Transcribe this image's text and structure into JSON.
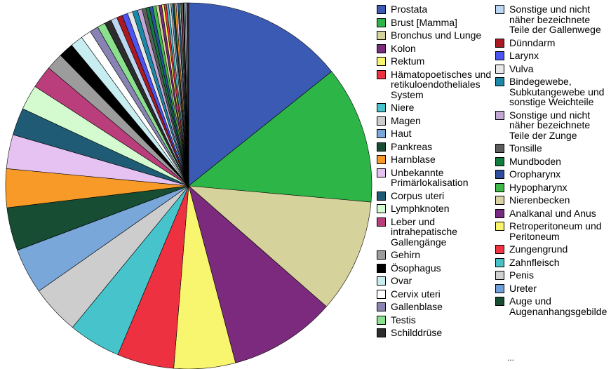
{
  "chart_data": {
    "type": "pie",
    "title": "",
    "slices": [
      {
        "label": "Prostata",
        "value": 14.2,
        "color": "#3b5ab4"
      },
      {
        "label": "Brust [Mamma]",
        "value": 12.1,
        "color": "#2db548"
      },
      {
        "label": "Bronchus und Lunge",
        "value": 10.0,
        "color": "#d6d29c"
      },
      {
        "label": "Kolon",
        "value": 9.4,
        "color": "#7b2a7e"
      },
      {
        "label": "Rektum",
        "value": 5.4,
        "color": "#f8f56e"
      },
      {
        "label": "Hämatopoetisches und retikuloendotheliales System",
        "value": 5.0,
        "color": "#ee3140"
      },
      {
        "label": "Niere",
        "value": 4.6,
        "color": "#46c3cb"
      },
      {
        "label": "Magen",
        "value": 4.3,
        "color": "#cdcdcd"
      },
      {
        "label": "Haut",
        "value": 4.0,
        "color": "#7aa7d9"
      },
      {
        "label": "Pankreas",
        "value": 3.8,
        "color": "#164d33"
      },
      {
        "label": "Harnblase",
        "value": 3.4,
        "color": "#f79a27"
      },
      {
        "label": "Unbekannte Primärlokalisation",
        "value": 3.0,
        "color": "#e5c2f1"
      },
      {
        "label": "Corpus uteri",
        "value": 2.4,
        "color": "#1f5b74"
      },
      {
        "label": "Lymphknoten",
        "value": 2.2,
        "color": "#d4fbd0"
      },
      {
        "label": "Leber und intrahepatische Gallengänge",
        "value": 2.0,
        "color": "#bb3e7c"
      },
      {
        "label": "Gehirn",
        "value": 1.5,
        "color": "#9c9c9c"
      },
      {
        "label": "Ösophagus",
        "value": 1.3,
        "color": "#000000"
      },
      {
        "label": "Ovar",
        "value": 1.1,
        "color": "#c8edf1"
      },
      {
        "label": "Cervix uteri",
        "value": 0.9,
        "color": "#ffffff"
      },
      {
        "label": "Gallenblase",
        "value": 0.75,
        "color": "#8983b4"
      },
      {
        "label": "Testis",
        "value": 0.7,
        "color": "#8be08e"
      },
      {
        "label": "Schilddrüse",
        "value": 0.6,
        "color": "#2d2d2d"
      },
      {
        "label": "Sonstige und nicht näher bezeichnete Teile der Gallenwege",
        "value": 0.55,
        "color": "#bcd7f3"
      },
      {
        "label": "Dünndarm",
        "value": 0.5,
        "color": "#aa1b21"
      },
      {
        "label": "Larynx",
        "value": 0.5,
        "color": "#4c55f2"
      },
      {
        "label": "Vulva",
        "value": 0.45,
        "color": "#e8e8e8"
      },
      {
        "label": "Bindegewebe, Subkutangewebe und sonstige Weichteile",
        "value": 0.45,
        "color": "#1c88a8"
      },
      {
        "label": "Sonstige und nicht näher bezeichnete Teile der Zunge",
        "value": 0.4,
        "color": "#c2a6d4"
      },
      {
        "label": "Tonsille",
        "value": 0.35,
        "color": "#5c5c5c"
      },
      {
        "label": "Mundboden",
        "value": 0.3,
        "color": "#127c3e"
      },
      {
        "label": "Oropharynx",
        "value": 0.3,
        "color": "#2f4f9e"
      },
      {
        "label": "Hypopharynx",
        "value": 0.3,
        "color": "#3fba4a"
      },
      {
        "label": "Nierenbecken",
        "value": 0.25,
        "color": "#d9d3a3"
      },
      {
        "label": "Analkanal und Anus",
        "value": 0.25,
        "color": "#762a82"
      },
      {
        "label": "Retroperitoneum und Peritoneum",
        "value": 0.2,
        "color": "#f9f56a"
      },
      {
        "label": "Zungengrund",
        "value": 0.2,
        "color": "#ef3442"
      },
      {
        "label": "Zahnfleisch",
        "value": 0.2,
        "color": "#47c1c6"
      },
      {
        "label": "Penis",
        "value": 0.2,
        "color": "#d0d0d0"
      },
      {
        "label": "Ureter",
        "value": 0.15,
        "color": "#6f9fd8"
      },
      {
        "label": "Auge und Augenanhangsgebilde",
        "value": 0.15,
        "color": "#174d30"
      },
      {
        "label": "",
        "value": 0.15,
        "color": "#f79a27"
      },
      {
        "label": "",
        "value": 0.15,
        "color": "#e3c3f0"
      },
      {
        "label": "",
        "value": 0.15,
        "color": "#1f5b74"
      },
      {
        "label": "",
        "value": 0.1,
        "color": "#ccf5cc"
      },
      {
        "label": "",
        "value": 0.1,
        "color": "#b63a78"
      },
      {
        "label": "",
        "value": 0.1,
        "color": "#9c9c9c"
      },
      {
        "label": "",
        "value": 0.1,
        "color": "#000000"
      },
      {
        "label": "",
        "value": 0.1,
        "color": "#c8edf1"
      },
      {
        "label": "",
        "value": 0.1,
        "color": "#ffffff"
      },
      {
        "label": "",
        "value": 0.1,
        "color": "#8983b4"
      },
      {
        "label": "",
        "value": 0.1,
        "color": "#2d2d2d"
      }
    ],
    "legend_columns": [
      [
        {
          "lines": [
            "Prostata"
          ],
          "color": "#3b5ab4"
        },
        {
          "lines": [
            "Brust [Mamma]"
          ],
          "color": "#2db548"
        },
        {
          "lines": [
            "Bronchus und Lunge"
          ],
          "color": "#d6d29c"
        },
        {
          "lines": [
            "Kolon"
          ],
          "color": "#7b2a7e"
        },
        {
          "lines": [
            "Rektum"
          ],
          "color": "#f8f56e"
        },
        {
          "lines": [
            "Hämatopoetisches und",
            "retikuloendotheliales",
            "System"
          ],
          "color": "#ee3140"
        },
        {
          "lines": [
            "Niere"
          ],
          "color": "#46c3cb"
        },
        {
          "lines": [
            "Magen"
          ],
          "color": "#cdcdcd"
        },
        {
          "lines": [
            "Haut"
          ],
          "color": "#7aa7d9"
        },
        {
          "lines": [
            "Pankreas"
          ],
          "color": "#164d33"
        },
        {
          "lines": [
            "Harnblase"
          ],
          "color": "#f79a27"
        },
        {
          "lines": [
            "Unbekannte",
            "Primärlokalisation"
          ],
          "color": "#e5c2f1"
        },
        {
          "lines": [
            "Corpus uteri"
          ],
          "color": "#1f5b74"
        },
        {
          "lines": [
            "Lymphknoten"
          ],
          "color": "#d4fbd0"
        },
        {
          "lines": [
            "Leber und",
            "intrahepatische",
            "Gallengänge"
          ],
          "color": "#bb3e7c"
        },
        {
          "lines": [
            "Gehirn"
          ],
          "color": "#9c9c9c"
        },
        {
          "lines": [
            "Ösophagus"
          ],
          "color": "#000000"
        },
        {
          "lines": [
            "Ovar"
          ],
          "color": "#c8edf1"
        },
        {
          "lines": [
            "Cervix uteri"
          ],
          "color": "#ffffff"
        },
        {
          "lines": [
            "Gallenblase"
          ],
          "color": "#8983b4"
        },
        {
          "lines": [
            "Testis"
          ],
          "color": "#8be08e"
        },
        {
          "lines": [
            "Schilddrüse"
          ],
          "color": "#2d2d2d"
        }
      ],
      [
        {
          "lines": [
            "Sonstige und nicht",
            "näher bezeichnete",
            "Teile der Gallenwege"
          ],
          "color": "#bcd7f3"
        },
        {
          "lines": [
            "Dünndarm"
          ],
          "color": "#aa1b21"
        },
        {
          "lines": [
            "Larynx"
          ],
          "color": "#4c55f2"
        },
        {
          "lines": [
            "Vulva"
          ],
          "color": "#e8e8e8"
        },
        {
          "lines": [
            "Bindegewebe,",
            "Subkutangewebe und",
            "sonstige Weichteile"
          ],
          "color": "#1c88a8"
        },
        {
          "lines": [
            "Sonstige und nicht",
            "näher bezeichnete",
            "Teile der Zunge"
          ],
          "color": "#c2a6d4"
        },
        {
          "lines": [
            "Tonsille"
          ],
          "color": "#5c5c5c"
        },
        {
          "lines": [
            "Mundboden"
          ],
          "color": "#127c3e"
        },
        {
          "lines": [
            "Oropharynx"
          ],
          "color": "#2f4f9e"
        },
        {
          "lines": [
            "Hypopharynx"
          ],
          "color": "#3fba4a"
        },
        {
          "lines": [
            "Nierenbecken"
          ],
          "color": "#d9d3a3"
        },
        {
          "lines": [
            "Analkanal und Anus"
          ],
          "color": "#762a82"
        },
        {
          "lines": [
            "Retroperitoneum und",
            "Peritoneum"
          ],
          "color": "#f9f56a"
        },
        {
          "lines": [
            "Zungengrund"
          ],
          "color": "#ef3442"
        },
        {
          "lines": [
            "Zahnfleisch"
          ],
          "color": "#47c1c6"
        },
        {
          "lines": [
            "Penis"
          ],
          "color": "#d0d0d0"
        },
        {
          "lines": [
            "Ureter"
          ],
          "color": "#6f9fd8"
        },
        {
          "lines": [
            "Auge und",
            "Augenanhangsgebilde"
          ],
          "color": "#174d30"
        }
      ]
    ],
    "legend_ellipsis": "...",
    "legend_placement": "right"
  }
}
